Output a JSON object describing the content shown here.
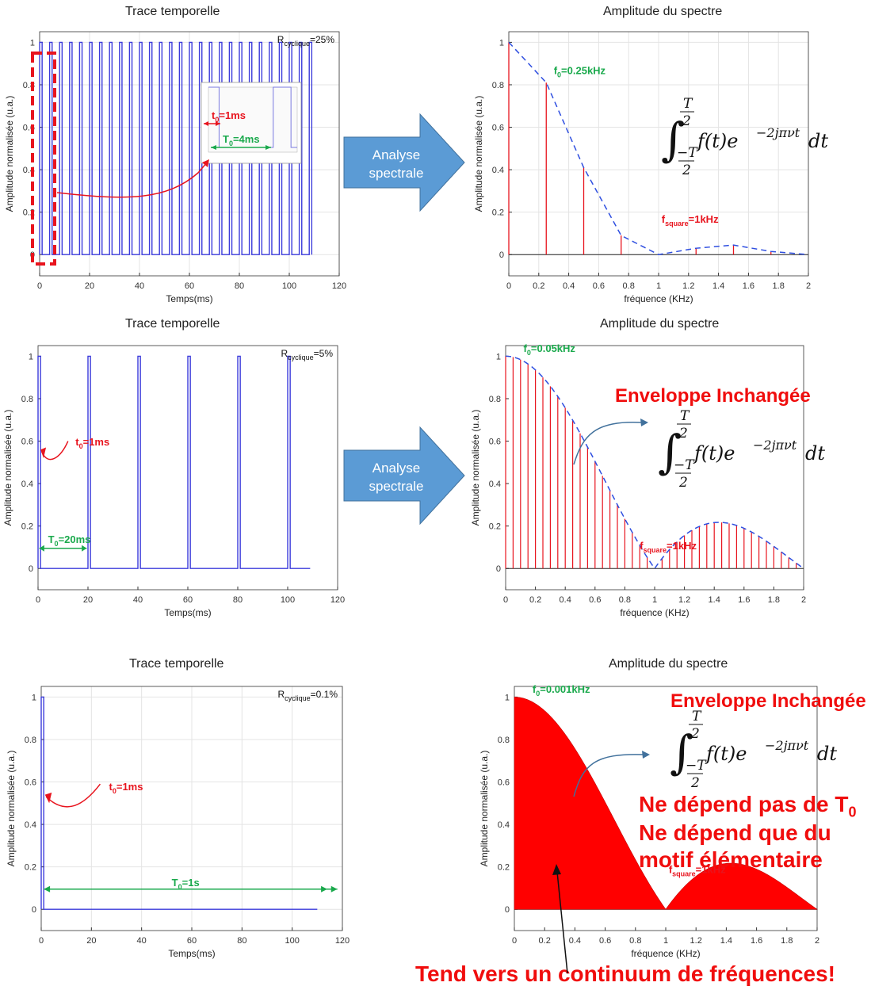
{
  "chart_data": [
    {
      "id": "t1",
      "type": "line",
      "title": "Trace temporelle",
      "xlabel": "Temps(ms)",
      "ylabel": "Amplitude normalisée (u.a.)",
      "xlim": [
        0,
        120
      ],
      "ylim": [
        -0.1,
        1.05
      ],
      "xticks": [
        0,
        20,
        40,
        60,
        80,
        100,
        120
      ],
      "yticks": [
        0,
        0.2,
        0.4,
        0.6,
        0.8,
        1
      ],
      "grid": true,
      "series": [
        {
          "period_ms": 4,
          "pulse_ms": 1,
          "start_ms": 0,
          "end_ms": 109,
          "color": "#3b3bdb"
        }
      ],
      "duty_label": {
        "prefix": "R",
        "sub": "cyclique",
        "suffix": "=25%"
      },
      "annotations": [
        {
          "text": "t",
          "sub": "0",
          "after": "=1ms",
          "color": "#e8141e"
        },
        {
          "text": "T",
          "sub": "0",
          "after": "=4ms",
          "color": "#1aa94c"
        }
      ]
    },
    {
      "id": "s1",
      "type": "bar",
      "title": "Amplitude du spectre",
      "xlabel": "fréquence (KHz)",
      "ylabel": "Amplitude normalisée (u.a.)",
      "xlim": [
        0,
        2
      ],
      "ylim": [
        -0.1,
        1.05
      ],
      "xticks": [
        0,
        0.2,
        0.4,
        0.6,
        0.8,
        1,
        1.2,
        1.4,
        1.6,
        1.8,
        2
      ],
      "yticks": [
        0,
        0.2,
        0.4,
        0.6,
        0.8,
        1
      ],
      "grid": true,
      "x": [
        0,
        0.25,
        0.5,
        0.75,
        1.0,
        1.25,
        1.5,
        1.75,
        2.0
      ],
      "values": [
        1.0,
        0.81,
        0.41,
        0.09,
        0.0,
        0.03,
        0.045,
        0.015,
        0.0
      ],
      "bar_color": "#e8141e",
      "envelope_color": "#2f4fe0",
      "annotations": [
        {
          "text": "f",
          "sub": "0",
          "after": "=0.25kHz",
          "color": "#1aa94c"
        },
        {
          "text": "f",
          "sub": "square",
          "after": "=1kHz",
          "color": "#e8141e"
        }
      ]
    },
    {
      "id": "t2",
      "type": "line",
      "title": "Trace temporelle",
      "xlabel": "Temps(ms)",
      "ylabel": "Amplitude normalisée (u.a.)",
      "xlim": [
        0,
        120
      ],
      "ylim": [
        -0.1,
        1.05
      ],
      "xticks": [
        0,
        20,
        40,
        60,
        80,
        100,
        120
      ],
      "yticks": [
        0,
        0.2,
        0.4,
        0.6,
        0.8,
        1
      ],
      "grid": false,
      "series": [
        {
          "period_ms": 20,
          "pulse_ms": 1,
          "start_ms": 0,
          "end_ms": 109,
          "color": "#3b3bdb"
        }
      ],
      "duty_label": {
        "prefix": "R",
        "sub": "cyclique",
        "suffix": "=5%"
      },
      "annotations": [
        {
          "text": "t",
          "sub": "0",
          "after": "=1ms",
          "color": "#e8141e"
        },
        {
          "text": "T",
          "sub": "0",
          "after": "=20ms",
          "color": "#1aa94c"
        }
      ]
    },
    {
      "id": "s2",
      "type": "bar",
      "title": "Amplitude du spectre",
      "xlabel": "fréquence (KHz)",
      "ylabel": "Amplitude normalisée (u.a.)",
      "xlim": [
        0,
        2
      ],
      "ylim": [
        -0.1,
        1.05
      ],
      "xticks": [
        0,
        0.2,
        0.4,
        0.6,
        0.8,
        1,
        1.2,
        1.4,
        1.6,
        1.8,
        2
      ],
      "yticks": [
        0,
        0.2,
        0.4,
        0.6,
        0.8,
        1
      ],
      "grid": false,
      "bar_spacing": 0.05,
      "envelope": "sinc",
      "bar_color": "#e8141e",
      "envelope_color": "#2f4fe0",
      "annotations": [
        {
          "text": "f",
          "sub": "0",
          "after": "=0.05kHz",
          "color": "#1aa94c"
        },
        {
          "text": "f",
          "sub": "square",
          "after": "=1kHz",
          "color": "#e8141e"
        }
      ]
    },
    {
      "id": "t3",
      "type": "line",
      "title": "Trace temporelle",
      "xlabel": "Temps(ms)",
      "ylabel": "Amplitude normalisée (u.a.)",
      "xlim": [
        0,
        120
      ],
      "ylim": [
        -0.1,
        1.05
      ],
      "xticks": [
        0,
        20,
        40,
        60,
        80,
        100,
        120
      ],
      "yticks": [
        0,
        0.2,
        0.4,
        0.6,
        0.8,
        1
      ],
      "grid": true,
      "series": [
        {
          "period_ms": 1000,
          "pulse_ms": 1,
          "start_ms": 0,
          "end_ms": 110,
          "color": "#3b3bdb"
        }
      ],
      "duty_label": {
        "prefix": "R",
        "sub": "cyclique",
        "suffix": "=0.1%"
      },
      "annotations": [
        {
          "text": "t",
          "sub": "0",
          "after": "=1ms",
          "color": "#e8141e"
        },
        {
          "text": "T",
          "sub": "0",
          "after": "=1s",
          "color": "#1aa94c"
        }
      ]
    },
    {
      "id": "s3",
      "type": "area",
      "title": "Amplitude du spectre",
      "xlabel": "fréquence (KHz)",
      "ylabel": "Amplitude normalisée (u.a.)",
      "xlim": [
        0,
        2
      ],
      "ylim": [
        -0.1,
        1.05
      ],
      "xticks": [
        0,
        0.2,
        0.4,
        0.6,
        0.8,
        1,
        1.2,
        1.4,
        1.6,
        1.8,
        2
      ],
      "yticks": [
        0,
        0.2,
        0.4,
        0.6,
        0.8,
        1
      ],
      "grid": false,
      "envelope": "sinc",
      "fill_color": "#ff0000",
      "annotations": [
        {
          "text": "f",
          "sub": "0",
          "after": "=0.001kHz",
          "color": "#1aa94c"
        },
        {
          "text": "f",
          "sub": "square",
          "after": "=1kHz",
          "color": "#e8141e"
        }
      ]
    }
  ],
  "arrows": [
    {
      "line1": "Analyse",
      "line2": "spectrale",
      "color": "#5b9bd5"
    },
    {
      "line1": "Analyse",
      "line2": "spectrale",
      "color": "#5b9bd5"
    }
  ],
  "formula": {
    "integrand": "f(t)e",
    "exponent": "−2jπνt",
    "dt": "dt",
    "upper": "T",
    "lower": "T",
    "denominator": "2"
  },
  "callouts": {
    "envelope_unchanged": "Enveloppe Inchangée",
    "not_depend_line1": "Ne dépend pas de T",
    "not_depend_sub": "0",
    "not_depend_line2": "Ne dépend que du",
    "not_depend_line3": "motif élémentaire",
    "continuum": "Tend vers un continuum de fréquences!"
  }
}
